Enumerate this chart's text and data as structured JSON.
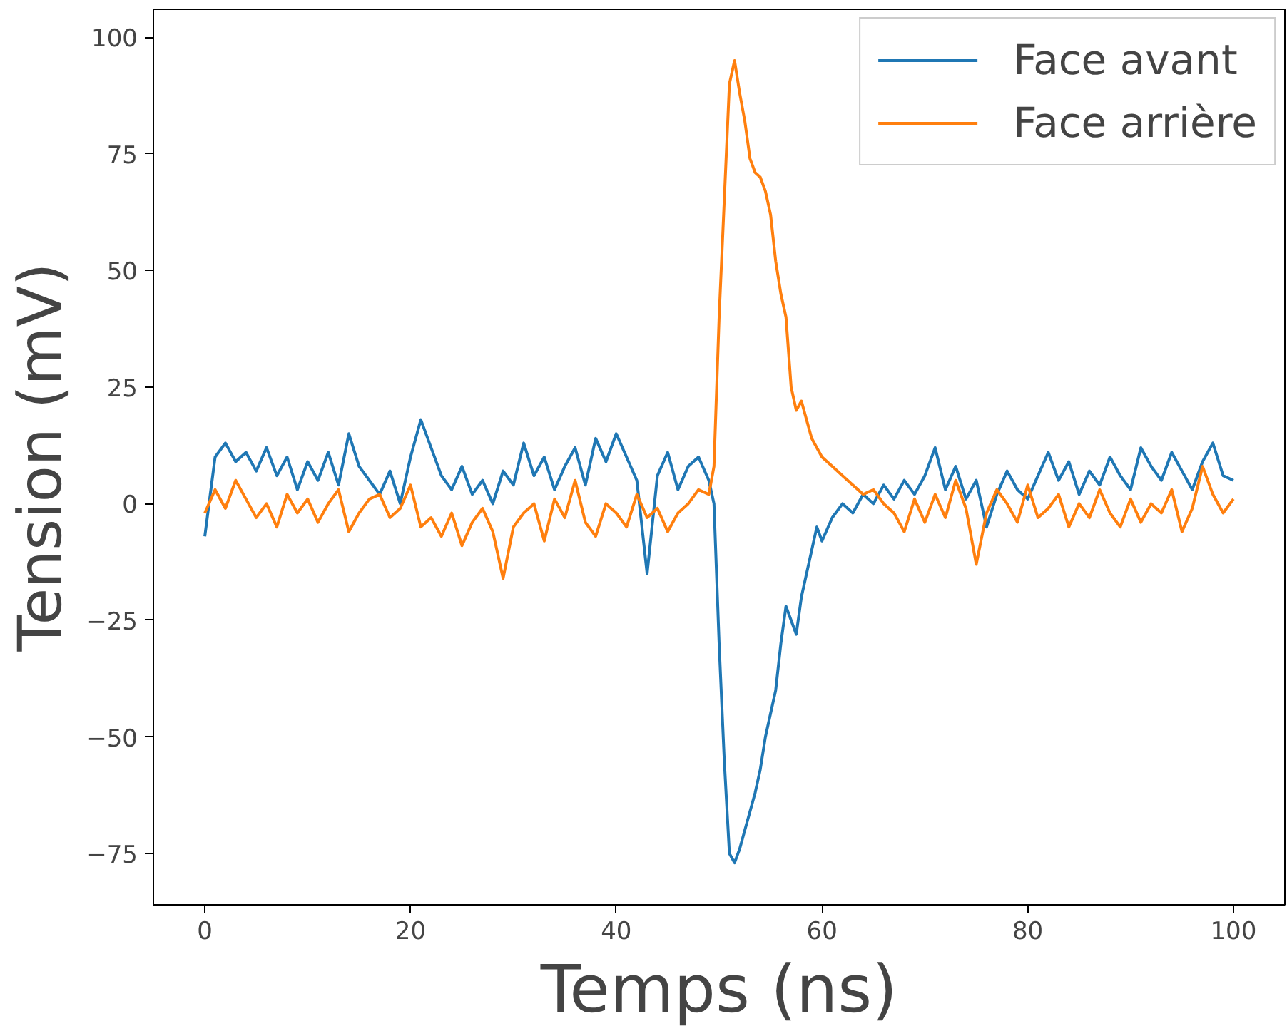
{
  "chart_data": {
    "type": "line",
    "xlabel": "Temps (ns)",
    "ylabel": "Tension (mV)",
    "x": [
      0,
      1,
      2,
      3,
      4,
      5,
      6,
      7,
      8,
      9,
      10,
      11,
      12,
      13,
      14,
      15,
      16,
      17,
      18,
      19,
      20,
      21,
      22,
      23,
      24,
      25,
      26,
      27,
      28,
      29,
      30,
      31,
      32,
      33,
      34,
      35,
      36,
      37,
      38,
      39,
      40,
      41,
      42,
      43,
      44,
      45,
      46,
      47,
      48,
      49,
      49.5,
      50,
      50.5,
      51,
      51.5,
      52,
      52.5,
      53,
      53.5,
      54,
      54.5,
      55,
      55.5,
      56,
      56.5,
      57,
      57.5,
      58,
      58.5,
      59,
      59.5,
      60,
      61,
      62,
      63,
      64,
      65,
      66,
      67,
      68,
      69,
      70,
      71,
      72,
      73,
      74,
      75,
      76,
      77,
      78,
      79,
      80,
      81,
      82,
      83,
      84,
      85,
      86,
      87,
      88,
      89,
      90,
      91,
      92,
      93,
      94,
      95,
      96,
      97,
      98,
      99,
      100
    ],
    "series": [
      {
        "name": "Face avant",
        "color": "#1f77b4",
        "values": [
          -7,
          10,
          13,
          9,
          11,
          7,
          12,
          6,
          10,
          3,
          9,
          5,
          11,
          4,
          15,
          8,
          5,
          2,
          7,
          0,
          10,
          18,
          12,
          6,
          3,
          8,
          2,
          5,
          0,
          7,
          4,
          13,
          6,
          10,
          3,
          8,
          12,
          4,
          14,
          9,
          15,
          10,
          5,
          -15,
          6,
          11,
          3,
          8,
          10,
          5,
          0,
          -30,
          -55,
          -75,
          -77,
          -74,
          -70,
          -66,
          -62,
          -57,
          -50,
          -45,
          -40,
          -30,
          -22,
          -25,
          -28,
          -20,
          -15,
          -10,
          -5,
          -8,
          -3,
          0,
          -2,
          2,
          0,
          4,
          1,
          5,
          2,
          6,
          12,
          3,
          8,
          1,
          5,
          -5,
          2,
          7,
          3,
          1,
          6,
          11,
          5,
          9,
          2,
          7,
          4,
          10,
          6,
          3,
          12,
          8,
          5,
          11,
          7,
          3,
          9,
          13,
          6,
          5
        ]
      },
      {
        "name": "Face arrière",
        "color": "#ff7f0e",
        "values": [
          -2,
          3,
          -1,
          5,
          1,
          -3,
          0,
          -5,
          2,
          -2,
          1,
          -4,
          0,
          3,
          -6,
          -2,
          1,
          2,
          -3,
          -1,
          4,
          -5,
          -3,
          -7,
          -2,
          -9,
          -4,
          -1,
          -6,
          -16,
          -5,
          -2,
          0,
          -8,
          1,
          -3,
          5,
          -4,
          -7,
          0,
          -2,
          -5,
          2,
          -3,
          -1,
          -6,
          -2,
          0,
          3,
          2,
          8,
          40,
          65,
          90,
          95,
          88,
          82,
          74,
          71,
          70,
          67,
          62,
          52,
          45,
          40,
          25,
          20,
          22,
          18,
          14,
          12,
          10,
          8,
          6,
          4,
          2,
          3,
          0,
          -2,
          -6,
          1,
          -4,
          2,
          -3,
          5,
          -1,
          -13,
          -2,
          3,
          0,
          -4,
          4,
          -3,
          -1,
          2,
          -5,
          0,
          -3,
          3,
          -2,
          -5,
          1,
          -4,
          0,
          -2,
          3,
          -6,
          -1,
          8,
          2,
          -2,
          1
        ]
      }
    ],
    "xlim": [
      -5,
      105
    ],
    "ylim": [
      -86,
      106
    ],
    "xticks": [
      0,
      20,
      40,
      60,
      80,
      100
    ],
    "yticks": [
      {
        "value": -75,
        "label": "−75"
      },
      {
        "value": -50,
        "label": "−50"
      },
      {
        "value": -25,
        "label": "−25"
      },
      0,
      25,
      50,
      75,
      100
    ],
    "grid": false,
    "legend": "top right",
    "line_style": "solid",
    "marker": "none"
  }
}
